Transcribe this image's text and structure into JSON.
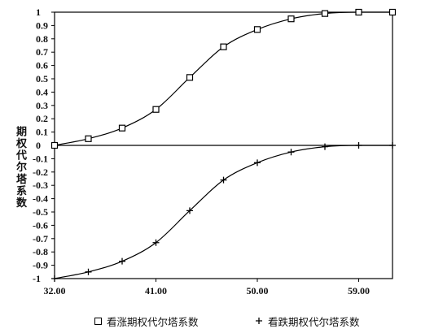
{
  "chart_data": {
    "type": "line",
    "ylabel": "期权代尔塔系数",
    "x": [
      32,
      35,
      38,
      41,
      44,
      47,
      50,
      53,
      56,
      59,
      62
    ],
    "xlim": [
      32,
      62
    ],
    "ylim": [
      -1,
      1
    ],
    "grid": false,
    "legend_position": "bottom",
    "series": [
      {
        "name": "看涨期权代尔塔系数",
        "marker": "square",
        "values": [
          0.0,
          0.05,
          0.13,
          0.27,
          0.51,
          0.74,
          0.87,
          0.95,
          0.99,
          1.0,
          1.0
        ]
      },
      {
        "name": "看跌期权代尔塔系数",
        "marker": "plus",
        "values": [
          -1.0,
          -0.95,
          -0.87,
          -0.73,
          -0.49,
          -0.26,
          -0.13,
          -0.05,
          -0.01,
          0.0,
          0.0
        ]
      }
    ],
    "xticks": [
      {
        "value": 32,
        "label": "32.00"
      },
      {
        "value": 41,
        "label": "41.00"
      },
      {
        "value": 50,
        "label": "50.00"
      },
      {
        "value": 59,
        "label": "59.00"
      }
    ],
    "yticks": [
      {
        "value": 1,
        "label": "1"
      },
      {
        "value": 0.9,
        "label": "0.9"
      },
      {
        "value": 0.8,
        "label": "0.8"
      },
      {
        "value": 0.7,
        "label": "0.7"
      },
      {
        "value": 0.6,
        "label": "0.6"
      },
      {
        "value": 0.5,
        "label": "0.5"
      },
      {
        "value": 0.4,
        "label": "0.4"
      },
      {
        "value": 0.3,
        "label": "0.3"
      },
      {
        "value": 0.2,
        "label": "0.2"
      },
      {
        "value": 0.1,
        "label": "0.1"
      },
      {
        "value": 0,
        "label": "0"
      },
      {
        "value": -0.1,
        "label": "-0.1"
      },
      {
        "value": -0.2,
        "label": "-0.2"
      },
      {
        "value": -0.3,
        "label": "-0.3"
      },
      {
        "value": -0.4,
        "label": "-0.4"
      },
      {
        "value": -0.5,
        "label": "-0.5"
      },
      {
        "value": -0.6,
        "label": "-0.6"
      },
      {
        "value": -0.7,
        "label": "-0.7"
      },
      {
        "value": -0.8,
        "label": "-0.8"
      },
      {
        "value": -0.9,
        "label": "-0.9"
      },
      {
        "value": -1,
        "label": "-1"
      }
    ]
  }
}
